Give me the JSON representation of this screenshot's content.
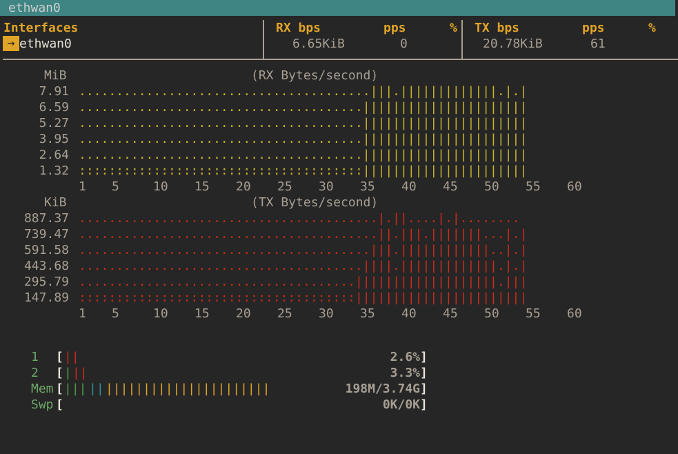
{
  "window": {
    "title": "ethwan0"
  },
  "table": {
    "col_interfaces": "Interfaces",
    "col_rx_bps": "RX bps",
    "col_rx_pps": "pps",
    "col_rx_pct": "%",
    "col_tx_bps": "TX bps",
    "col_tx_pps": "pps",
    "col_tx_pct": "%",
    "rows": [
      {
        "arrow": "→",
        "name": "ethwan0",
        "rx_bps": "6.65KiB",
        "rx_pps": "0",
        "tx_bps": "20.78KiB",
        "tx_pps": "61"
      }
    ]
  },
  "rx_graph": {
    "unit": "MiB",
    "title": "(RX Bytes/second)",
    "y_labels": [
      "7.91",
      "6.59",
      "5.27",
      "3.95",
      "2.64",
      "1.32"
    ],
    "x_labels": [
      "1",
      "5",
      "10",
      "15",
      "20",
      "25",
      "30",
      "35",
      "40",
      "45",
      "50",
      "55",
      "60"
    ],
    "color": "#c7b52a",
    "rows": [
      ".......................................|||.|||||||||||||.|.|",
      "......................................||||||||||||||||||||||",
      "......................................||||||||||||||||||||||",
      "......................................||||||||||||||||||||||",
      "......................................||||||||||||||||||||||",
      "::::::::::::::::::::::::::::::::::::::||||||||||||||||||||||"
    ]
  },
  "tx_graph": {
    "unit": "KiB",
    "title": "(TX Bytes/second)",
    "y_labels": [
      "887.37",
      "739.47",
      "591.58",
      "443.68",
      "295.79",
      "147.89"
    ],
    "x_labels": [
      "1",
      "5",
      "10",
      "15",
      "20",
      "25",
      "30",
      "35",
      "40",
      "45",
      "50",
      "55",
      "60"
    ],
    "color": "#cc2b1d",
    "rows": [
      "........................................|.||....|.|........",
      "........................................||.|||.|||||||...|.|",
      ".......................................|||.||||||||||||..|.|",
      "......................................||||.|||||||||||||.|.|",
      ".....................................|||||||||||||||||||.|||",
      ":::::::::::::::::::::::::::::::::::::|||||||||||||||||||||||"
    ]
  },
  "meters": [
    {
      "label": "1",
      "value": "2.6%",
      "segments": [
        {
          "text": "||",
          "color": "#cc2b1d"
        }
      ]
    },
    {
      "label": "2",
      "value": "3.3%",
      "segments": [
        {
          "text": "|",
          "color": "#4f9b48"
        },
        {
          "text": "||",
          "color": "#cc2b1d"
        }
      ]
    },
    {
      "label": "Mem",
      "value": "198M/3.74G",
      "segments": [
        {
          "text": "|||",
          "color": "#4f9b48"
        },
        {
          "text": "||",
          "color": "#2f8f9a"
        },
        {
          "text": "||||||||||||||||||||||",
          "color": "#e0a428"
        }
      ]
    },
    {
      "label": "Swp",
      "value": "0K/0K",
      "segments": []
    }
  ],
  "brackets": {
    "open": "[",
    "close": "]"
  }
}
